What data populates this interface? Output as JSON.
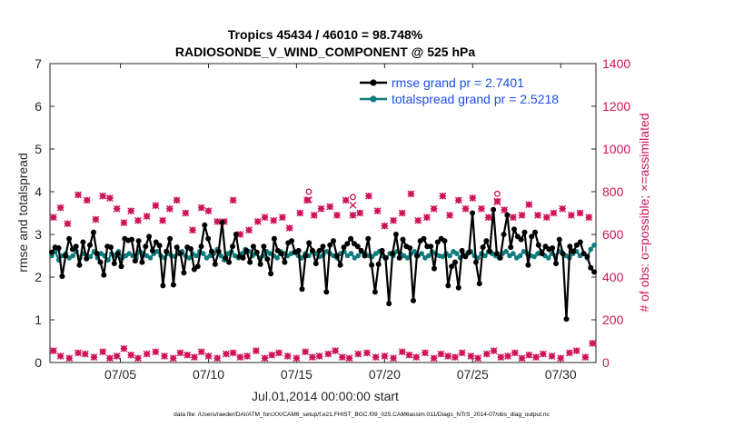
{
  "chart_data": {
    "type": "line",
    "title": "Tropics 45434 / 46010 = 98.748%",
    "subtitle": "RADIOSONDE_V_WIND_COMPONENT @ 525 hPa",
    "xlabel": "Jul.01,2014 00:00:00 start",
    "ylabel": "rmse and totalspread",
    "ylabel_right": "# of obs: o=possible; ×=assimilated",
    "footer": "data file: /Users/raeder/DAI/ATM_forcXX/CAM6_setup/f.e21.FHIST_BGC.f09_025.CAM6assim.011/Diags_NTrS_2014-07/obs_diag_output.nc",
    "xlim": [
      1,
      32
    ],
    "ylim": [
      0,
      7
    ],
    "ylim_right": [
      0,
      1400
    ],
    "xticks": [
      5,
      10,
      15,
      20,
      25,
      30
    ],
    "xtick_labels": [
      "07/05",
      "07/10",
      "07/15",
      "07/20",
      "07/25",
      "07/30"
    ],
    "yticks": [
      0,
      1,
      2,
      3,
      4,
      5,
      6,
      7
    ],
    "yticks_right": [
      0,
      200,
      400,
      600,
      800,
      1000,
      1200,
      1400
    ],
    "legend_position": "top-right",
    "colors": {
      "rmse": "#000000",
      "spread": "#0e7c7b",
      "obs": "#d0145a",
      "axis": "#262626"
    },
    "series": [
      {
        "name": "rmse grand pr = 2.7401",
        "key": "rmse",
        "values": [
          2.58,
          2.7,
          2.68,
          2.02,
          2.5,
          2.9,
          2.65,
          2.72,
          2.28,
          2.82,
          2.43,
          2.75,
          3.05,
          2.55,
          2.35,
          2.05,
          2.72,
          2.7,
          2.32,
          2.55,
          2.25,
          2.9,
          2.86,
          2.88,
          2.38,
          2.85,
          2.35,
          2.72,
          2.95,
          2.62,
          2.82,
          2.74,
          1.8,
          2.6,
          2.9,
          1.82,
          2.7,
          2.55,
          2.1,
          2.7,
          2.66,
          2.18,
          2.25,
          2.72,
          3.22,
          2.9,
          2.6,
          2.3,
          2.6,
          3.28,
          2.45,
          2.35,
          2.72,
          3.0,
          2.48,
          2.45,
          2.62,
          2.35,
          2.72,
          2.58,
          2.3,
          2.72,
          2.42,
          2.08,
          2.9,
          2.62,
          2.55,
          2.35,
          2.8,
          2.85,
          2.58,
          2.62,
          1.72,
          2.5,
          2.8,
          2.62,
          2.32,
          2.62,
          2.72,
          1.65,
          2.75,
          2.85,
          2.5,
          2.28,
          2.7,
          2.78,
          2.9,
          2.78,
          2.72,
          2.62,
          2.5,
          2.9,
          2.28,
          1.65,
          2.3,
          2.62,
          2.45,
          1.38,
          2.55,
          3.0,
          2.45,
          2.88,
          2.72,
          2.68,
          1.45,
          2.5,
          2.85,
          2.9,
          2.72,
          2.72,
          2.2,
          2.82,
          2.9,
          2.85,
          1.8,
          2.25,
          2.35,
          1.75,
          2.62,
          2.48,
          2.58,
          3.5,
          2.35,
          1.85,
          2.7,
          2.85,
          2.6,
          3.58,
          2.55,
          2.45,
          3.0,
          3.45,
          2.7,
          3.12,
          2.95,
          2.88,
          3.05,
          2.28,
          2.95,
          3.05,
          2.75,
          2.55,
          2.72,
          2.65,
          2.68,
          2.32,
          2.88,
          2.55,
          1.02,
          2.72,
          2.6,
          2.75,
          2.82,
          2.55,
          2.48,
          2.22,
          2.12
        ]
      },
      {
        "name": "totalspread grand pr = 2.5218",
        "key": "spread",
        "values": [
          2.5,
          2.6,
          2.4,
          2.5,
          2.55,
          2.45,
          2.5,
          2.6,
          2.45,
          2.55,
          2.5,
          2.48,
          2.6,
          2.45,
          2.55,
          2.5,
          2.4,
          2.55,
          2.5,
          2.6,
          2.45,
          2.5,
          2.55,
          2.5,
          2.45,
          2.6,
          2.55,
          2.5,
          2.45,
          2.55,
          2.6,
          2.5,
          2.45,
          2.55,
          2.5,
          2.48,
          2.55,
          2.6,
          2.5,
          2.45,
          2.55,
          2.5,
          2.6,
          2.55,
          2.45,
          2.5,
          2.55,
          2.65,
          2.5,
          2.4,
          2.55,
          2.6,
          2.5,
          2.45,
          2.55,
          2.65,
          2.6,
          2.5,
          2.55,
          2.45,
          2.5,
          2.6,
          2.55,
          2.5,
          2.45,
          2.6,
          2.55,
          2.5,
          2.55,
          2.6,
          2.5,
          2.45,
          2.55,
          2.5,
          2.6,
          2.55,
          2.48,
          2.5,
          2.6,
          2.55,
          2.5,
          2.45,
          2.55,
          2.6,
          2.5,
          2.55,
          2.45,
          2.5,
          2.6,
          2.55,
          2.5,
          2.48,
          2.55,
          2.6,
          2.5,
          2.45,
          2.55,
          2.5,
          2.6,
          2.55,
          2.5,
          2.45,
          2.55,
          2.6,
          2.5,
          2.55,
          2.45,
          2.5,
          2.6,
          2.55,
          2.5,
          2.48,
          2.55,
          2.5,
          2.6,
          2.55,
          2.45,
          2.5,
          2.55,
          2.6,
          2.5,
          2.45,
          2.55,
          2.5,
          2.6,
          2.55,
          2.5,
          2.45,
          2.55,
          2.6,
          2.5,
          2.55,
          2.45,
          2.5,
          2.6,
          2.55,
          2.5,
          2.48,
          2.55,
          2.6,
          2.5,
          2.45,
          2.55,
          2.5,
          2.6,
          2.55,
          2.5,
          2.45,
          2.55,
          2.6,
          2.5,
          2.55,
          2.45,
          2.65,
          2.75
        ]
      }
    ],
    "obs_possible_high": [
      [
        1.2,
        680
      ],
      [
        1.6,
        725
      ],
      [
        2.0,
        650
      ],
      [
        2.6,
        785
      ],
      [
        3.1,
        760
      ],
      [
        3.6,
        670
      ],
      [
        4.0,
        780
      ],
      [
        4.4,
        770
      ],
      [
        4.8,
        720
      ],
      [
        5.2,
        655
      ],
      [
        5.6,
        710
      ],
      [
        6.0,
        665
      ],
      [
        6.5,
        685
      ],
      [
        7.0,
        735
      ],
      [
        7.4,
        665
      ],
      [
        7.8,
        720
      ],
      [
        8.2,
        760
      ],
      [
        8.7,
        700
      ],
      [
        9.1,
        620
      ],
      [
        9.6,
        725
      ],
      [
        10.0,
        710
      ],
      [
        10.5,
        660
      ],
      [
        10.9,
        660
      ],
      [
        11.4,
        760
      ],
      [
        11.8,
        600
      ],
      [
        12.3,
        620
      ],
      [
        12.8,
        660
      ],
      [
        13.2,
        680
      ],
      [
        13.7,
        665
      ],
      [
        14.2,
        680
      ],
      [
        14.6,
        630
      ],
      [
        15.2,
        700
      ],
      [
        15.6,
        760
      ],
      [
        16.0,
        690
      ],
      [
        16.4,
        720
      ],
      [
        16.9,
        730
      ],
      [
        17.3,
        690
      ],
      [
        17.8,
        760
      ],
      [
        18.2,
        690
      ],
      [
        18.6,
        700
      ],
      [
        19.1,
        780
      ],
      [
        19.6,
        710
      ],
      [
        20.0,
        640
      ],
      [
        20.5,
        665
      ],
      [
        21.0,
        700
      ],
      [
        21.5,
        790
      ],
      [
        21.9,
        665
      ],
      [
        22.4,
        680
      ],
      [
        22.8,
        720
      ],
      [
        23.3,
        780
      ],
      [
        23.7,
        690
      ],
      [
        24.2,
        760
      ],
      [
        24.6,
        720
      ],
      [
        25.0,
        770
      ],
      [
        25.5,
        720
      ],
      [
        25.9,
        680
      ],
      [
        26.4,
        755
      ],
      [
        26.8,
        715
      ],
      [
        27.3,
        680
      ],
      [
        27.8,
        690
      ],
      [
        28.2,
        740
      ],
      [
        28.7,
        690
      ],
      [
        29.2,
        680
      ],
      [
        29.6,
        700
      ],
      [
        30.1,
        720
      ],
      [
        30.6,
        690
      ],
      [
        31.1,
        700
      ],
      [
        31.6,
        680
      ]
    ],
    "obs_assimilated_high": [
      [
        1.2,
        680
      ],
      [
        1.6,
        725
      ],
      [
        2.0,
        650
      ],
      [
        2.6,
        785
      ],
      [
        3.1,
        760
      ],
      [
        3.6,
        670
      ],
      [
        4.0,
        780
      ],
      [
        4.4,
        770
      ],
      [
        4.8,
        720
      ],
      [
        5.2,
        655
      ],
      [
        5.6,
        710
      ],
      [
        6.0,
        665
      ],
      [
        6.5,
        685
      ],
      [
        7.0,
        735
      ],
      [
        7.4,
        665
      ],
      [
        7.8,
        720
      ],
      [
        8.2,
        760
      ],
      [
        8.7,
        700
      ],
      [
        9.1,
        620
      ],
      [
        9.6,
        725
      ],
      [
        10.0,
        710
      ],
      [
        10.5,
        660
      ],
      [
        10.9,
        660
      ],
      [
        11.4,
        760
      ],
      [
        11.8,
        600
      ],
      [
        12.3,
        620
      ],
      [
        12.8,
        660
      ],
      [
        13.2,
        680
      ],
      [
        13.7,
        665
      ],
      [
        14.2,
        680
      ],
      [
        14.6,
        630
      ],
      [
        15.2,
        700
      ],
      [
        15.6,
        760
      ],
      [
        16.0,
        690
      ],
      [
        16.4,
        720
      ],
      [
        16.9,
        730
      ],
      [
        17.3,
        690
      ],
      [
        17.8,
        760
      ],
      [
        18.2,
        690
      ],
      [
        18.6,
        700
      ],
      [
        19.1,
        780
      ],
      [
        19.6,
        710
      ],
      [
        20.0,
        640
      ],
      [
        20.5,
        665
      ],
      [
        21.0,
        700
      ],
      [
        21.5,
        790
      ],
      [
        21.9,
        665
      ],
      [
        22.4,
        680
      ],
      [
        22.8,
        720
      ],
      [
        23.3,
        780
      ],
      [
        23.7,
        690
      ],
      [
        24.2,
        760
      ],
      [
        24.6,
        720
      ],
      [
        25.0,
        770
      ],
      [
        25.5,
        720
      ],
      [
        25.9,
        680
      ],
      [
        26.4,
        755
      ],
      [
        26.8,
        715
      ],
      [
        27.3,
        680
      ],
      [
        27.8,
        690
      ],
      [
        28.2,
        740
      ],
      [
        28.7,
        690
      ],
      [
        29.2,
        680
      ],
      [
        29.6,
        700
      ],
      [
        30.1,
        720
      ],
      [
        30.6,
        690
      ],
      [
        31.1,
        700
      ],
      [
        31.6,
        680
      ]
    ],
    "obs_possible_only": [
      [
        15.7,
        800
      ],
      [
        18.2,
        775
      ],
      [
        26.4,
        790
      ]
    ],
    "obs_low": [
      [
        1.2,
        55
      ],
      [
        1.6,
        30
      ],
      [
        2.1,
        20
      ],
      [
        2.6,
        45
      ],
      [
        3.0,
        40
      ],
      [
        3.5,
        25
      ],
      [
        4.0,
        50
      ],
      [
        4.4,
        20
      ],
      [
        4.8,
        30
      ],
      [
        5.2,
        65
      ],
      [
        5.6,
        35
      ],
      [
        6.0,
        20
      ],
      [
        6.5,
        40
      ],
      [
        7.0,
        50
      ],
      [
        7.5,
        30
      ],
      [
        8.0,
        20
      ],
      [
        8.4,
        45
      ],
      [
        8.8,
        35
      ],
      [
        9.2,
        25
      ],
      [
        9.6,
        50
      ],
      [
        10.0,
        30
      ],
      [
        10.5,
        20
      ],
      [
        11.0,
        40
      ],
      [
        11.4,
        45
      ],
      [
        11.8,
        25
      ],
      [
        12.2,
        30
      ],
      [
        12.7,
        55
      ],
      [
        13.2,
        20
      ],
      [
        13.6,
        35
      ],
      [
        14.0,
        45
      ],
      [
        14.5,
        30
      ],
      [
        15.0,
        20
      ],
      [
        15.5,
        50
      ],
      [
        15.9,
        25
      ],
      [
        16.3,
        30
      ],
      [
        16.8,
        40
      ],
      [
        17.2,
        55
      ],
      [
        17.6,
        25
      ],
      [
        18.0,
        20
      ],
      [
        18.5,
        40
      ],
      [
        19.0,
        45
      ],
      [
        19.5,
        25
      ],
      [
        20.0,
        30
      ],
      [
        20.5,
        20
      ],
      [
        21.0,
        50
      ],
      [
        21.4,
        35
      ],
      [
        21.8,
        25
      ],
      [
        22.3,
        45
      ],
      [
        22.8,
        20
      ],
      [
        23.2,
        40
      ],
      [
        23.6,
        30
      ],
      [
        24.0,
        25
      ],
      [
        24.4,
        45
      ],
      [
        24.9,
        30
      ],
      [
        25.3,
        20
      ],
      [
        25.8,
        40
      ],
      [
        26.2,
        55
      ],
      [
        26.6,
        25
      ],
      [
        27.0,
        30
      ],
      [
        27.4,
        45
      ],
      [
        27.8,
        20
      ],
      [
        28.2,
        35
      ],
      [
        28.6,
        25
      ],
      [
        29.0,
        40
      ],
      [
        29.5,
        30
      ],
      [
        30.0,
        20
      ],
      [
        30.5,
        45
      ],
      [
        30.9,
        55
      ],
      [
        31.4,
        25
      ],
      [
        31.8,
        90
      ]
    ]
  }
}
